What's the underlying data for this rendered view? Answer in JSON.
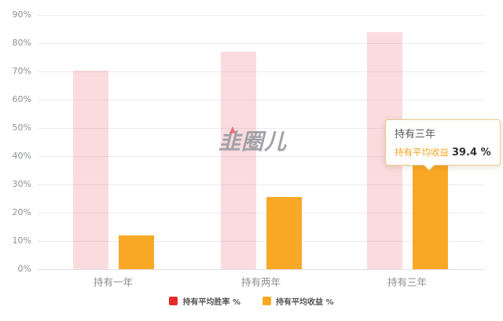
{
  "watermark": {
    "text": "韭圈儿"
  },
  "chart_data": {
    "type": "bar",
    "title": "",
    "categories": [
      "持有一年",
      "持有两年",
      "持有三年"
    ],
    "series": [
      {
        "name": "持有平均胜率 %",
        "legend_color": "#e32b2b",
        "bar_color": "rgba(229, 57, 70, 0.18)",
        "values": [
          70.3,
          76.9,
          83.9
        ]
      },
      {
        "name": "持有平均收益 %",
        "legend_color": "#f9a825",
        "bar_color": "#f9a825",
        "values": [
          11.9,
          25.6,
          39.4
        ]
      }
    ],
    "ylim": [
      0,
      90
    ],
    "y_tick_labels": [
      "0%",
      "10%",
      "20%",
      "30%",
      "40%",
      "50%",
      "60%",
      "70%",
      "80%",
      "90%"
    ],
    "grid": true,
    "legend_position": "bottom"
  },
  "tooltip": {
    "title": "持有三年",
    "series_label": "持有平均收益",
    "value": "39.4 %",
    "series_color": "#f5a623",
    "border_color": "#ecc98c"
  }
}
